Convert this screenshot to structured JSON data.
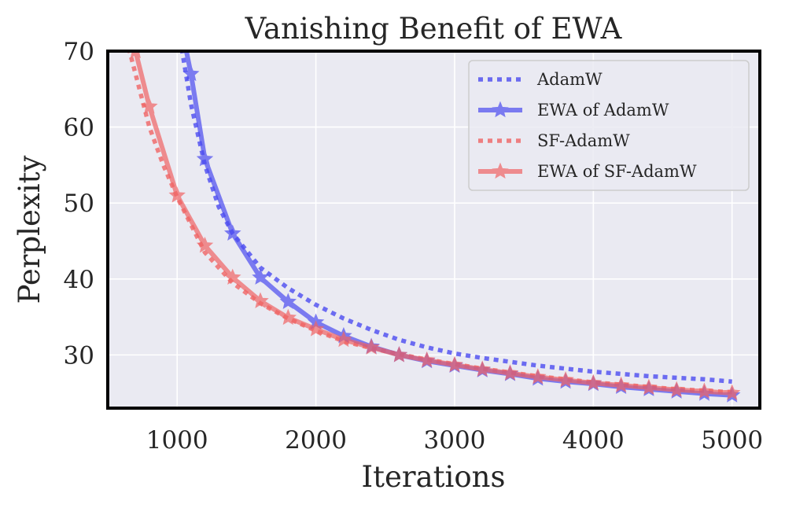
{
  "chart_data": {
    "type": "line",
    "title": "Vanishing Benefit of EWA",
    "xlabel": "Iterations",
    "ylabel": "Perplexity",
    "xlim": [
      500,
      5200
    ],
    "ylim": [
      23,
      70
    ],
    "xticks": [
      1000,
      2000,
      3000,
      4000,
      5000
    ],
    "yticks": [
      30,
      40,
      50,
      60,
      70
    ],
    "grid": true,
    "legend_position": "top-right",
    "series": [
      {
        "name": "AdamW",
        "color": "#4b4bf0",
        "style": "dotted",
        "marker": "none",
        "x": [
          1000,
          1100,
          1200,
          1300,
          1400,
          1600,
          1800,
          2000,
          2200,
          2400,
          2600,
          2800,
          3000,
          3200,
          3400,
          3600,
          3800,
          4000,
          4200,
          4400,
          4600,
          4800,
          5000
        ],
        "y": [
          74,
          63,
          55,
          49.5,
          46,
          41.5,
          38.8,
          36.6,
          34.8,
          33.3,
          32,
          31,
          30.2,
          29.6,
          29.1,
          28.6,
          28.2,
          27.8,
          27.5,
          27.2,
          27,
          26.8,
          26.5
        ]
      },
      {
        "name": "EWA of AdamW",
        "color": "#4b4bf0",
        "style": "solid",
        "marker": "star",
        "x": [
          1000,
          1100,
          1200,
          1400,
          1600,
          1800,
          2000,
          2200,
          2400,
          2600,
          2800,
          3000,
          3200,
          3400,
          3600,
          3800,
          4000,
          4200,
          4400,
          4600,
          4800,
          5000
        ],
        "y": [
          76,
          67,
          55.8,
          46,
          40.2,
          37,
          34.3,
          32.5,
          31.1,
          30,
          29.2,
          28.6,
          28,
          27.5,
          26.9,
          26.5,
          26.2,
          25.8,
          25.5,
          25.2,
          24.9,
          24.7
        ]
      },
      {
        "name": "SF-AdamW",
        "color": "#f06464",
        "style": "dotted",
        "marker": "none",
        "x": [
          600,
          700,
          800,
          900,
          1000,
          1200,
          1400,
          1600,
          1800,
          2000,
          2200,
          2400,
          2600,
          2800,
          3000,
          3200,
          3400,
          3600,
          3800,
          4000,
          4200,
          4400,
          4600,
          4800,
          5000
        ],
        "y": [
          74,
          67,
          60,
          55,
          50.8,
          43.5,
          39.5,
          36.8,
          34.8,
          33.2,
          31.8,
          30.9,
          30.1,
          29.4,
          28.8,
          28.2,
          27.7,
          27.2,
          26.8,
          26.4,
          26.1,
          25.8,
          25.5,
          25.3,
          25.1
        ]
      },
      {
        "name": "EWA of SF-AdamW",
        "color": "#f06464",
        "style": "solid",
        "marker": "star",
        "x": [
          650,
          700,
          800,
          1000,
          1200,
          1400,
          1600,
          1800,
          2000,
          2200,
          2400,
          2600,
          2800,
          3000,
          3200,
          3400,
          3600,
          3800,
          4000,
          4200,
          4400,
          4600,
          4800,
          5000
        ],
        "y": [
          74,
          70,
          62.7,
          51,
          44.4,
          40.2,
          37.1,
          34.9,
          33.4,
          32,
          31,
          30,
          29.3,
          28.7,
          28.1,
          27.6,
          27.1,
          26.7,
          26.3,
          26,
          25.7,
          25.4,
          25.2,
          25
        ]
      }
    ]
  }
}
